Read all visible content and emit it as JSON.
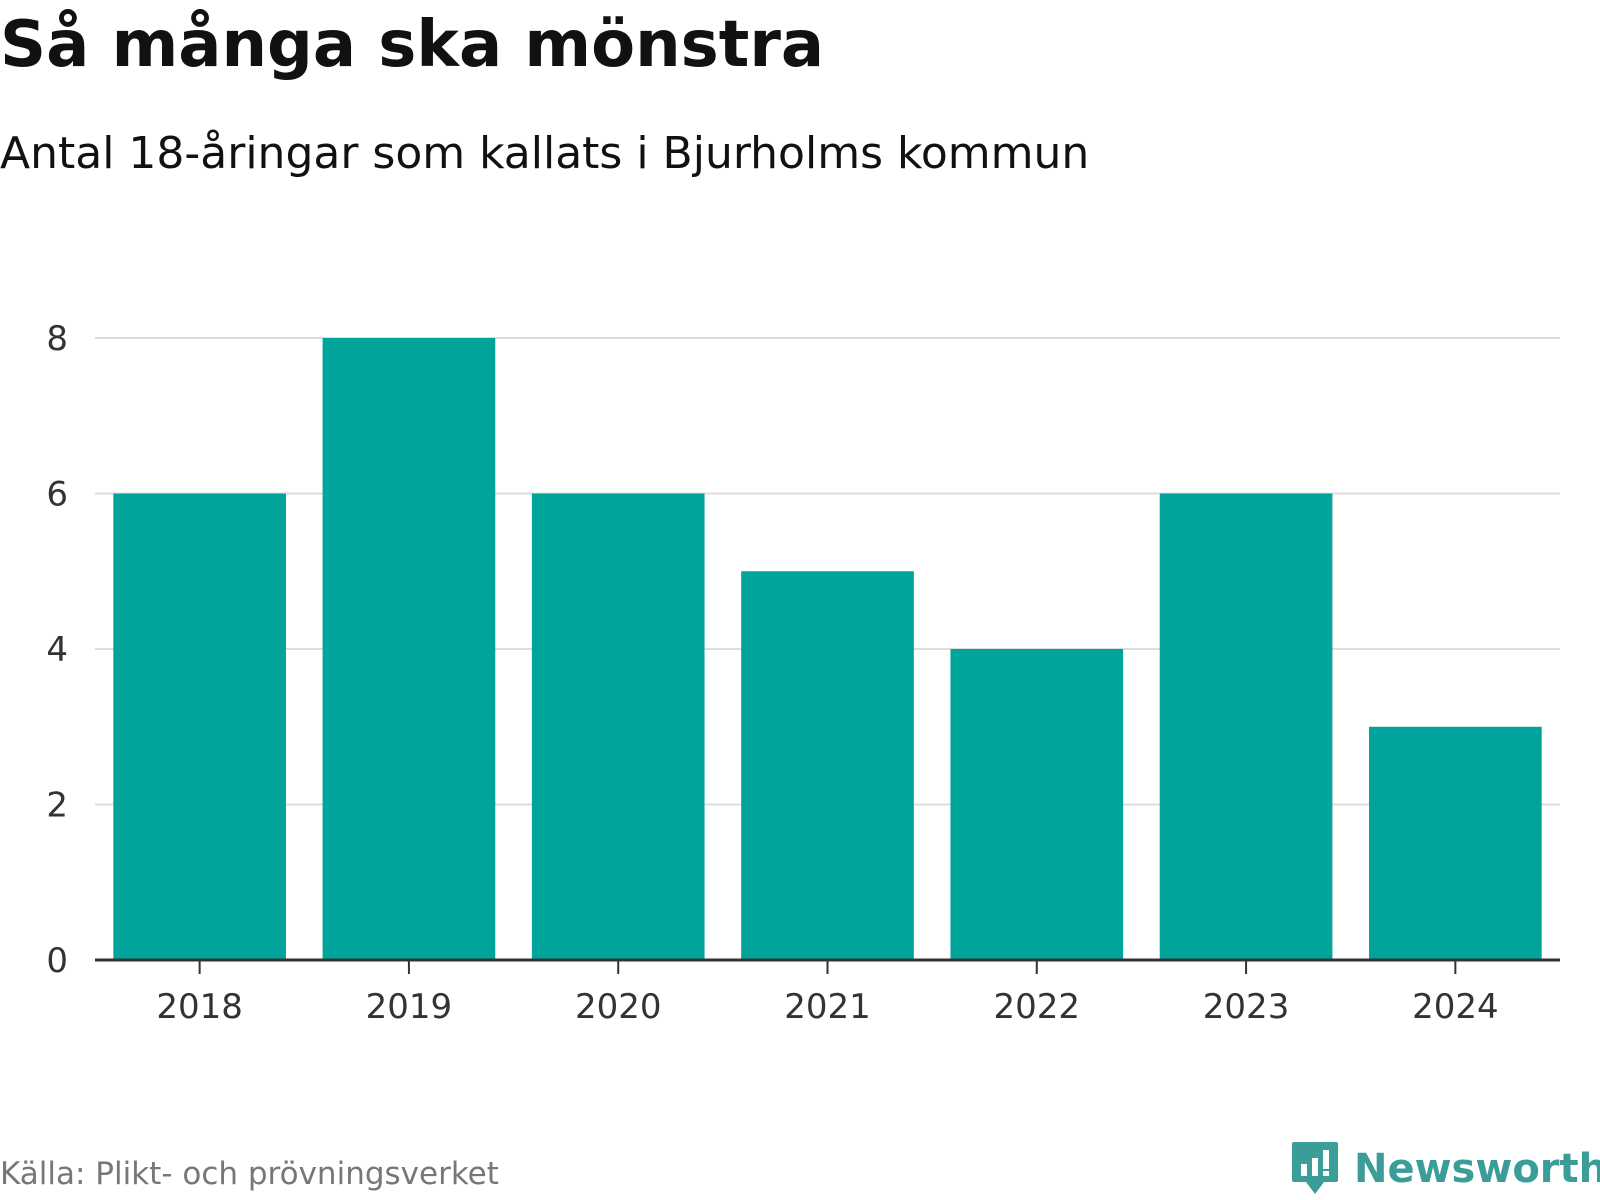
{
  "title": "Så många ska mönstra",
  "subtitle": "Antal 18-åringar som kallats i Bjurholms kommun",
  "source": "Källa: Plikt- och prövningsverket",
  "brand": {
    "name": "Newsworthy",
    "icon": "newsworthy-logo-icon",
    "color": "#3a9d98"
  },
  "colors": {
    "bar": "#00a49a",
    "grid": "#dddddd",
    "axis": "#333333",
    "tick_text": "#333333"
  },
  "chart_data": {
    "type": "bar",
    "title": "Så många ska mönstra",
    "subtitle": "Antal 18-åringar som kallats i Bjurholms kommun",
    "categories": [
      "2018",
      "2019",
      "2020",
      "2021",
      "2022",
      "2023",
      "2024"
    ],
    "values": [
      6,
      8,
      6,
      5,
      4,
      6,
      3
    ],
    "xlabel": "",
    "ylabel": "",
    "ylim": [
      0,
      8
    ],
    "yticks": [
      0,
      2,
      4,
      6,
      8
    ],
    "grid": true,
    "legend": "none"
  }
}
